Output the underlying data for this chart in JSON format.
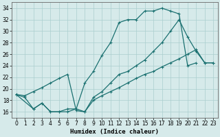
{
  "xlabel": "Humidex (Indice chaleur)",
  "bg_color": "#d6eaea",
  "line_color": "#1a7070",
  "grid_color": "#aacece",
  "xlim": [
    -0.5,
    23.5
  ],
  "ylim": [
    15.0,
    35.0
  ],
  "yticks": [
    16,
    18,
    20,
    22,
    24,
    26,
    28,
    30,
    32,
    34
  ],
  "xticks": [
    0,
    1,
    2,
    3,
    4,
    5,
    6,
    7,
    8,
    9,
    10,
    11,
    12,
    13,
    14,
    15,
    16,
    17,
    18,
    19,
    20,
    21,
    22,
    23
  ],
  "line1_x": [
    0,
    1,
    2,
    3,
    4,
    5,
    6,
    7,
    8,
    9,
    10,
    11,
    12,
    13,
    14,
    15,
    16,
    17,
    18,
    19,
    20,
    21
  ],
  "line1_y": [
    19,
    18.5,
    16.5,
    17.5,
    16.0,
    16.0,
    16.5,
    16.5,
    21.0,
    23.0,
    25.8,
    28.0,
    31.5,
    32.0,
    32.0,
    33.5,
    33.5,
    34.0,
    33.5,
    33.0,
    24.0,
    24.5
  ],
  "line2_x": [
    0,
    1,
    2,
    3,
    4,
    5,
    6,
    7,
    8,
    9,
    10,
    11,
    12,
    13,
    14,
    15,
    16,
    17,
    18,
    19,
    20,
    21,
    22,
    23
  ],
  "line2_y": [
    19.0,
    18.8,
    19.5,
    20.2,
    21.0,
    21.8,
    22.5,
    16.2,
    16.0,
    18.5,
    19.5,
    21.0,
    22.5,
    23.0,
    24.0,
    25.0,
    26.5,
    28.0,
    30.0,
    32.0,
    29.0,
    26.5,
    24.5,
    24.5
  ],
  "line3_x": [
    0,
    2,
    3,
    4,
    5,
    6,
    7,
    8,
    9,
    10,
    11,
    12,
    13,
    14,
    15,
    16,
    17,
    18,
    19,
    20,
    21,
    22,
    23
  ],
  "line3_y": [
    19.0,
    16.5,
    17.5,
    16.0,
    16.0,
    16.0,
    16.5,
    16.0,
    18.0,
    18.8,
    19.5,
    20.2,
    21.0,
    21.8,
    22.5,
    23.0,
    23.8,
    24.5,
    25.2,
    26.0,
    26.8,
    24.5,
    24.5
  ]
}
